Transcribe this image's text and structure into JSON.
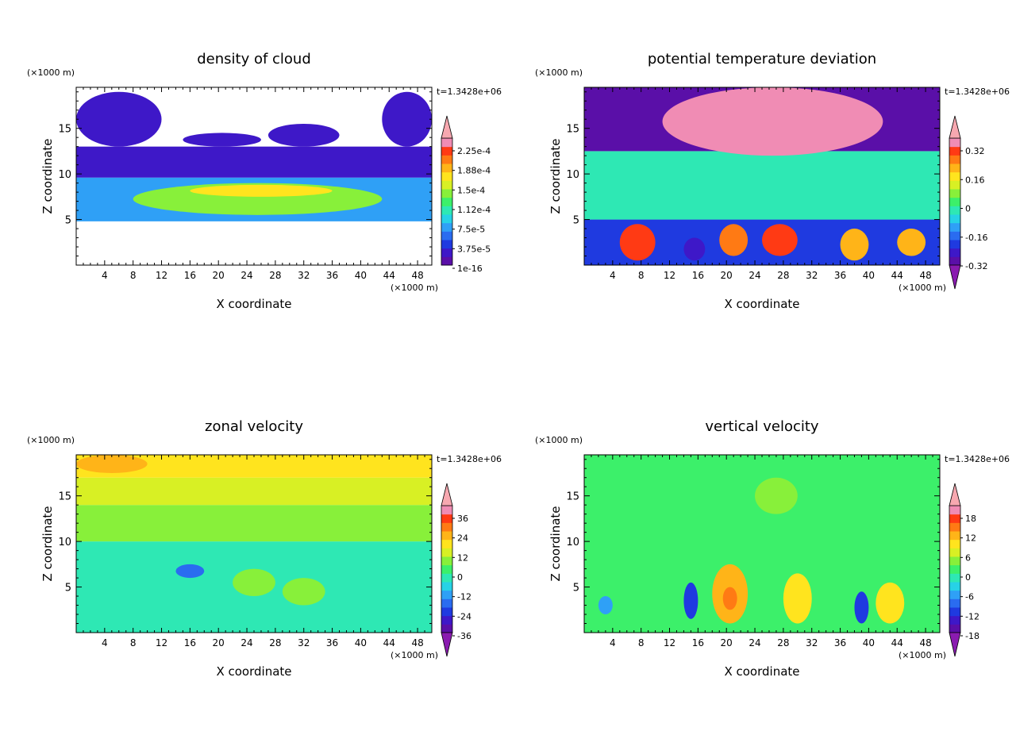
{
  "figure": {
    "colorbar_palette": [
      "#5a0fa8",
      "#3e18c8",
      "#1f3ae0",
      "#2a6cf0",
      "#2fa0f6",
      "#27d2e6",
      "#2ee8b4",
      "#3cf06a",
      "#88f03a",
      "#d8f024",
      "#ffe41e",
      "#ffb418",
      "#ff7a14",
      "#ff3a14",
      "#f08cb4"
    ],
    "offscale_colors": {
      "over": "#f7a8b0",
      "under": "#8a1bb0"
    }
  },
  "chart_data": [
    {
      "id": "cloud",
      "type": "heatmap",
      "title": "density of cloud",
      "xlabel": "X coordinate",
      "ylabel": "Z coordinate",
      "x_unit": "(×1000 m)",
      "y_unit": "(×1000 m)",
      "time_label": "t=1.3428e+06",
      "xlim": [
        0,
        50
      ],
      "ylim": [
        0,
        19.5
      ],
      "x_ticks": [
        4,
        8,
        12,
        16,
        20,
        24,
        28,
        32,
        36,
        40,
        44,
        48
      ],
      "y_ticks": [
        5,
        10,
        15
      ],
      "colorbar_labels": [
        "2.25e-4",
        "1.88e-4",
        "1.5e-4",
        "1.12e-4",
        "7.5e-5",
        "3.75e-5",
        "1e-16"
      ],
      "colorbar_arrows": {
        "top": true,
        "bottom": false
      },
      "features": [
        {
          "shape": "band",
          "x": [
            0,
            50
          ],
          "y": [
            4.8,
            9.6
          ],
          "value": 0.25
        },
        {
          "shape": "band",
          "x": [
            0,
            50
          ],
          "y": [
            9.6,
            13
          ],
          "value": 0.08
        },
        {
          "shape": "blob",
          "x": [
            0,
            12
          ],
          "y": [
            13,
            19
          ],
          "value": 0.05
        },
        {
          "shape": "blob",
          "x": [
            15,
            26
          ],
          "y": [
            13,
            14.5
          ],
          "value": 0.05
        },
        {
          "shape": "blob",
          "x": [
            27,
            37
          ],
          "y": [
            13,
            15.5
          ],
          "value": 0.05
        },
        {
          "shape": "blob",
          "x": [
            43,
            50
          ],
          "y": [
            13,
            19
          ],
          "value": 0.05
        },
        {
          "shape": "blob",
          "x": [
            8,
            43
          ],
          "y": [
            5.5,
            9
          ],
          "value": 0.55
        },
        {
          "shape": "blob",
          "x": [
            16,
            36
          ],
          "y": [
            7.5,
            8.8
          ],
          "value": 0.7
        }
      ]
    },
    {
      "id": "theta",
      "type": "heatmap",
      "title": "potential temperature deviation",
      "xlabel": "X coordinate",
      "ylabel": "Z coordinate",
      "x_unit": "(×1000 m)",
      "y_unit": "(×1000 m)",
      "time_label": "t=1.3428e+06",
      "xlim": [
        0,
        50
      ],
      "ylim": [
        0,
        19.5
      ],
      "x_ticks": [
        4,
        8,
        12,
        16,
        20,
        24,
        28,
        32,
        36,
        40,
        44,
        48
      ],
      "y_ticks": [
        5,
        10,
        15
      ],
      "colorbar_labels": [
        "0.32",
        "0.16",
        "0",
        "-0.16",
        "-0.32"
      ],
      "colorbar_arrows": {
        "top": true,
        "bottom": true
      },
      "features": [
        {
          "shape": "band",
          "x": [
            0,
            50
          ],
          "y": [
            0,
            5
          ],
          "value": 0.15
        },
        {
          "shape": "band",
          "x": [
            0,
            50
          ],
          "y": [
            5,
            12.5
          ],
          "value": 0.45
        },
        {
          "shape": "band",
          "x": [
            0,
            50
          ],
          "y": [
            12.5,
            19.5
          ],
          "value": 0.02
        },
        {
          "shape": "blob",
          "x": [
            11,
            42
          ],
          "y": [
            12,
            19.5
          ],
          "value": 0.98
        },
        {
          "shape": "blob",
          "x": [
            5,
            10
          ],
          "y": [
            0.5,
            4.5
          ],
          "value": 0.9
        },
        {
          "shape": "blob",
          "x": [
            19,
            23
          ],
          "y": [
            1,
            4.5
          ],
          "value": 0.85
        },
        {
          "shape": "blob",
          "x": [
            25,
            30
          ],
          "y": [
            1,
            4.5
          ],
          "value": 0.92
        },
        {
          "shape": "blob",
          "x": [
            36,
            40
          ],
          "y": [
            0.5,
            4
          ],
          "value": 0.8
        },
        {
          "shape": "blob",
          "x": [
            44,
            48
          ],
          "y": [
            1,
            4
          ],
          "value": 0.75
        },
        {
          "shape": "blob",
          "x": [
            14,
            17
          ],
          "y": [
            0.5,
            3
          ],
          "value": 0.05
        }
      ]
    },
    {
      "id": "zonal",
      "type": "heatmap",
      "title": "zonal velocity",
      "xlabel": "X coordinate",
      "ylabel": "Z coordinate",
      "x_unit": "(×1000 m)",
      "y_unit": "(×1000 m)",
      "time_label": "t=1.3428e+06",
      "xlim": [
        0,
        50
      ],
      "ylim": [
        0,
        19.5
      ],
      "x_ticks": [
        4,
        8,
        12,
        16,
        20,
        24,
        28,
        32,
        36,
        40,
        44,
        48
      ],
      "y_ticks": [
        5,
        10,
        15
      ],
      "colorbar_labels": [
        "36",
        "24",
        "12",
        "0",
        "-12",
        "-24",
        "-36"
      ],
      "colorbar_arrows": {
        "top": true,
        "bottom": true
      },
      "features": [
        {
          "shape": "band",
          "x": [
            0,
            50
          ],
          "y": [
            0,
            10
          ],
          "value": 0.42
        },
        {
          "shape": "band",
          "x": [
            0,
            50
          ],
          "y": [
            10,
            14
          ],
          "value": 0.55
        },
        {
          "shape": "band",
          "x": [
            0,
            50
          ],
          "y": [
            14,
            17
          ],
          "value": 0.63
        },
        {
          "shape": "band",
          "x": [
            0,
            50
          ],
          "y": [
            17,
            19.5
          ],
          "value": 0.72
        },
        {
          "shape": "blob",
          "x": [
            0,
            10
          ],
          "y": [
            17.5,
            19.5
          ],
          "value": 0.8
        },
        {
          "shape": "blob",
          "x": [
            14,
            18
          ],
          "y": [
            6,
            7.5
          ],
          "value": 0.22
        },
        {
          "shape": "blob",
          "x": [
            29,
            35
          ],
          "y": [
            3,
            6
          ],
          "value": 0.6
        },
        {
          "shape": "blob",
          "x": [
            22,
            28
          ],
          "y": [
            4,
            7
          ],
          "value": 0.58
        }
      ]
    },
    {
      "id": "vertical",
      "type": "heatmap",
      "title": "vertical velocity",
      "xlabel": "X coordinate",
      "ylabel": "Z coordinate",
      "x_unit": "(×1000 m)",
      "y_unit": "(×1000 m)",
      "time_label": "t=1.3428e+06",
      "xlim": [
        0,
        50
      ],
      "ylim": [
        0,
        19.5
      ],
      "x_ticks": [
        4,
        8,
        12,
        16,
        20,
        24,
        28,
        32,
        36,
        40,
        44,
        48
      ],
      "y_ticks": [
        5,
        10,
        15
      ],
      "colorbar_labels": [
        "18",
        "12",
        "6",
        "0",
        "-6",
        "-12",
        "-18"
      ],
      "colorbar_arrows": {
        "top": true,
        "bottom": true
      },
      "features": [
        {
          "shape": "band",
          "x": [
            0,
            50
          ],
          "y": [
            0,
            19.5
          ],
          "value": 0.47
        },
        {
          "shape": "blob",
          "x": [
            24,
            30
          ],
          "y": [
            13,
            17
          ],
          "value": 0.55
        },
        {
          "shape": "blob",
          "x": [
            18,
            23
          ],
          "y": [
            1,
            7.5
          ],
          "value": 0.75
        },
        {
          "shape": "blob",
          "x": [
            19.5,
            21.5
          ],
          "y": [
            2.5,
            5
          ],
          "value": 0.88
        },
        {
          "shape": "blob",
          "x": [
            28,
            32
          ],
          "y": [
            1,
            6.5
          ],
          "value": 0.68
        },
        {
          "shape": "blob",
          "x": [
            41,
            45
          ],
          "y": [
            1,
            5.5
          ],
          "value": 0.7
        },
        {
          "shape": "blob",
          "x": [
            14,
            16
          ],
          "y": [
            1.5,
            5.5
          ],
          "value": 0.15
        },
        {
          "shape": "blob",
          "x": [
            38,
            40
          ],
          "y": [
            1,
            4.5
          ],
          "value": 0.13
        },
        {
          "shape": "blob",
          "x": [
            2,
            4
          ],
          "y": [
            2,
            4
          ],
          "value": 0.25
        }
      ]
    }
  ]
}
